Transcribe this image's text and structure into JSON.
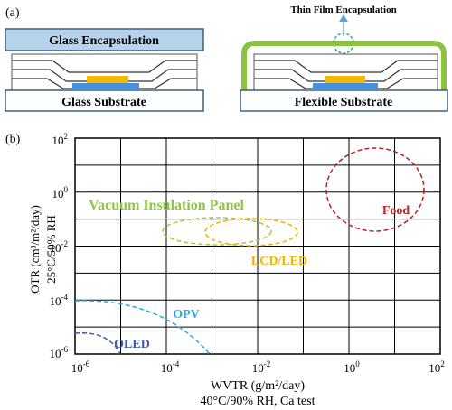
{
  "panel_a": {
    "label": "(a)",
    "left": {
      "top_label": "Glass Encapsulation",
      "bottom_label": "Glass Substrate"
    },
    "right": {
      "callout": "Thin Film Encapsulation",
      "bottom_label": "Flexible Substrate"
    }
  },
  "panel_b": {
    "label": "(b)",
    "y_title": "OTR (cm³/m²/day)",
    "y_sub": "25°C/50% RH",
    "x_title": "WVTR (g/m²/day)",
    "x_sub": "40°C/90% RH, Ca test",
    "x_ticks": [
      {
        "base": "10",
        "exp": "-6"
      },
      {
        "base": "10",
        "exp": "-4"
      },
      {
        "base": "10",
        "exp": "-2"
      },
      {
        "base": "10",
        "exp": "0"
      },
      {
        "base": "10",
        "exp": "2"
      }
    ],
    "y_ticks": [
      {
        "base": "10",
        "exp": "2"
      },
      {
        "base": "10",
        "exp": "0"
      },
      {
        "base": "10",
        "exp": "-2"
      },
      {
        "base": "10",
        "exp": "-4"
      },
      {
        "base": "10",
        "exp": "-6"
      }
    ],
    "regions": {
      "vip": {
        "label": "Vacuum Insulation Panel",
        "color": "#8dc63f"
      },
      "food": {
        "label": "Food",
        "color": "#b22222"
      },
      "lcd": {
        "label": "LCD/LED",
        "color": "#f0b400"
      },
      "opv": {
        "label": "OPV",
        "color": "#29abe2"
      },
      "oled": {
        "label": "OLED",
        "color": "#3e5aa8"
      }
    }
  },
  "colors": {
    "glass": "#b7d3ec",
    "glass_border": "#3d5f80",
    "encapsulation_green": "#8ac33f",
    "emitter_yellow": "#f5b800",
    "electrode_blue": "#4a90d9"
  }
}
